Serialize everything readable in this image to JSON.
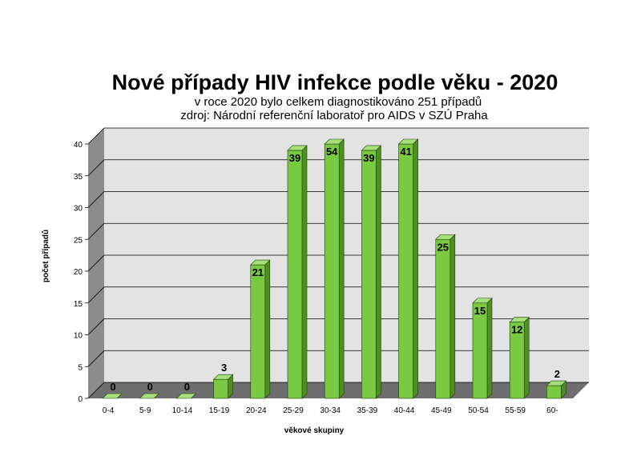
{
  "chart_data": {
    "type": "bar",
    "title": "Nové případy HIV infekce podle věku - 2020",
    "subtitle_lines": [
      "v roce 2020 bylo celkem diagnostikováno 251 případů",
      "zdroj: Národní referenční laboratoř pro AIDS v SZÚ Praha"
    ],
    "xlabel": "věkové skupiny",
    "ylabel": "počet případů",
    "categories": [
      "0-4",
      "5-9",
      "10-14",
      "15-19",
      "20-24",
      "25-29",
      "30-34",
      "35-39",
      "40-44",
      "45-49",
      "50-54",
      "55-59",
      "60-"
    ],
    "values": [
      0,
      0,
      0,
      3,
      21,
      39,
      54,
      39,
      41,
      25,
      15,
      12,
      2
    ],
    "data_labels": [
      "0",
      "0",
      "0",
      "3",
      "21",
      "39",
      "54",
      "39",
      "41",
      "25",
      "15",
      "12",
      "2"
    ],
    "ylim": [
      0,
      40
    ],
    "yticks": [
      "0",
      "5",
      "10",
      "15",
      "20",
      "25",
      "30",
      "35",
      "40"
    ],
    "grid": true,
    "bar_style": "3d",
    "colors": {
      "bar_front": "#7ac943",
      "bar_side": "#4e8f24",
      "bar_top": "#a6e07a",
      "bar_stroke": "#1f3d0c",
      "wall": "#e3e3e3",
      "side_wall": "#8c8c8c",
      "floor": "#6e6e6e",
      "gridline": "#000000"
    }
  }
}
